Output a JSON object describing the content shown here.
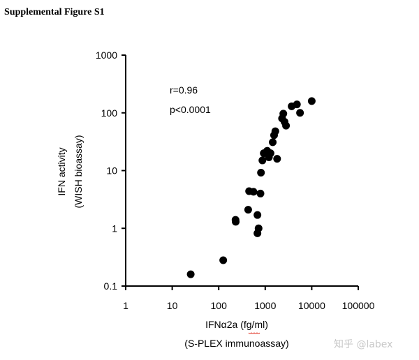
{
  "title": "Supplemental Figure S1",
  "watermark": "知乎 @labex",
  "chart_data": {
    "type": "scatter",
    "xscale": "log",
    "yscale": "log",
    "xlim": [
      1,
      100000
    ],
    "ylim": [
      0.1,
      1000
    ],
    "xticks": [
      1,
      10,
      100,
      1000,
      10000,
      100000
    ],
    "xtick_labels": [
      "1",
      "10",
      "100",
      "1000",
      "10000",
      "100000"
    ],
    "yticks": [
      0.1,
      1,
      10,
      100,
      1000
    ],
    "ytick_labels": [
      "0.1",
      "1",
      "10",
      "100",
      "1000"
    ],
    "xlabel": "IFNα2a (fg/ml)",
    "xlabel2": "(S-PLEX immunoassay)",
    "ylabel": "IFN activity",
    "ylabel2": "(WISH bioassay)",
    "annotations": [
      "r=0.96",
      "p<0.0001"
    ],
    "grid": false,
    "points": [
      {
        "x": 25,
        "y": 0.16
      },
      {
        "x": 125,
        "y": 0.28
      },
      {
        "x": 230,
        "y": 1.4
      },
      {
        "x": 232,
        "y": 1.3
      },
      {
        "x": 430,
        "y": 2.1
      },
      {
        "x": 450,
        "y": 4.4
      },
      {
        "x": 560,
        "y": 4.3
      },
      {
        "x": 680,
        "y": 1.7
      },
      {
        "x": 680,
        "y": 0.82
      },
      {
        "x": 720,
        "y": 1.0
      },
      {
        "x": 790,
        "y": 4.0
      },
      {
        "x": 810,
        "y": 9.2
      },
      {
        "x": 870,
        "y": 15
      },
      {
        "x": 930,
        "y": 20
      },
      {
        "x": 1100,
        "y": 22
      },
      {
        "x": 1200,
        "y": 17
      },
      {
        "x": 1300,
        "y": 20
      },
      {
        "x": 1450,
        "y": 31
      },
      {
        "x": 1550,
        "y": 41
      },
      {
        "x": 1650,
        "y": 48
      },
      {
        "x": 1800,
        "y": 16
      },
      {
        "x": 2300,
        "y": 80
      },
      {
        "x": 2450,
        "y": 97
      },
      {
        "x": 2600,
        "y": 70
      },
      {
        "x": 2800,
        "y": 60
      },
      {
        "x": 3700,
        "y": 130
      },
      {
        "x": 4800,
        "y": 140
      },
      {
        "x": 5600,
        "y": 100
      },
      {
        "x": 10000,
        "y": 160
      }
    ]
  }
}
